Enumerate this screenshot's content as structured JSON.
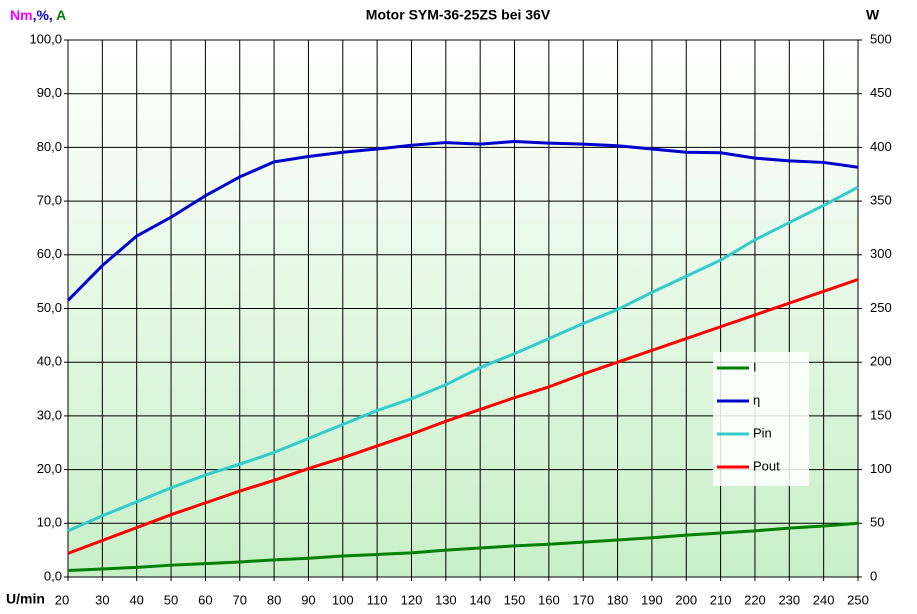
{
  "chart_data": {
    "type": "line",
    "title": "Motor SYM-36-25ZS bei 36V",
    "ylabel_parts": [
      {
        "text": "Nm",
        "color": "#ff00ff"
      },
      {
        "text": ",%,",
        "color": "#0000cc"
      },
      {
        "text": " A",
        "color": "#008000"
      }
    ],
    "y2label": "W",
    "xlabel": "U/min",
    "x": [
      20,
      30,
      40,
      50,
      60,
      70,
      80,
      90,
      100,
      110,
      120,
      130,
      140,
      150,
      160,
      170,
      180,
      190,
      200,
      210,
      220,
      230,
      240,
      250
    ],
    "series": [
      {
        "name": "I",
        "color": "#008000",
        "values": [
          1.2,
          1.5,
          1.8,
          2.2,
          2.5,
          2.8,
          3.2,
          3.5,
          3.9,
          4.2,
          4.5,
          5.0,
          5.4,
          5.8,
          6.1,
          6.5,
          6.9,
          7.3,
          7.8,
          8.2,
          8.6,
          9.1,
          9.5,
          10.0
        ]
      },
      {
        "name": "η",
        "color": "#0000cc",
        "values": [
          51.5,
          58,
          63.5,
          67,
          71,
          74.5,
          77.3,
          78.3,
          79.1,
          79.7,
          80.4,
          80.9,
          80.6,
          81.1,
          80.8,
          80.6,
          80.3,
          79.7,
          79.1,
          79.0,
          78.0,
          77.5,
          77.2,
          76.3
        ]
      },
      {
        "name": "Pin",
        "color": "#33cccc",
        "axis": "y2",
        "values": [
          43,
          57,
          70,
          83,
          95,
          105,
          116,
          129,
          142,
          155,
          166,
          179,
          195,
          208,
          222,
          236,
          249,
          265,
          280,
          295,
          314,
          330,
          346,
          363
        ]
      },
      {
        "name": "Pout",
        "color": "#ff0000",
        "axis": "y2",
        "values": [
          22,
          34,
          46,
          58,
          69,
          80,
          90,
          101,
          111,
          122,
          133,
          145,
          156,
          167,
          177,
          189,
          200,
          211,
          222,
          233,
          244,
          255,
          266,
          277
        ]
      }
    ],
    "xlim": [
      20,
      250
    ],
    "xticks": [
      20,
      30,
      40,
      50,
      60,
      70,
      80,
      90,
      100,
      110,
      120,
      130,
      140,
      150,
      160,
      170,
      180,
      190,
      200,
      210,
      220,
      230,
      240,
      250
    ],
    "ylim": [
      0,
      100
    ],
    "yticks": [
      {
        "value": 0,
        "label": "0,0"
      },
      {
        "value": 10,
        "label": "10,0"
      },
      {
        "value": 20,
        "label": "20,0"
      },
      {
        "value": 30,
        "label": "30,0"
      },
      {
        "value": 40,
        "label": "40,0"
      },
      {
        "value": 50,
        "label": "50,0"
      },
      {
        "value": 60,
        "label": "60,0"
      },
      {
        "value": 70,
        "label": "70,0"
      },
      {
        "value": 80,
        "label": "80,0"
      },
      {
        "value": 90,
        "label": "90,0"
      },
      {
        "value": 100,
        "label": "100,0"
      }
    ],
    "y2lim": [
      0,
      500
    ],
    "y2ticks": [
      0,
      50,
      100,
      150,
      200,
      250,
      300,
      350,
      400,
      450,
      500
    ],
    "grid": true,
    "legend": "right"
  }
}
